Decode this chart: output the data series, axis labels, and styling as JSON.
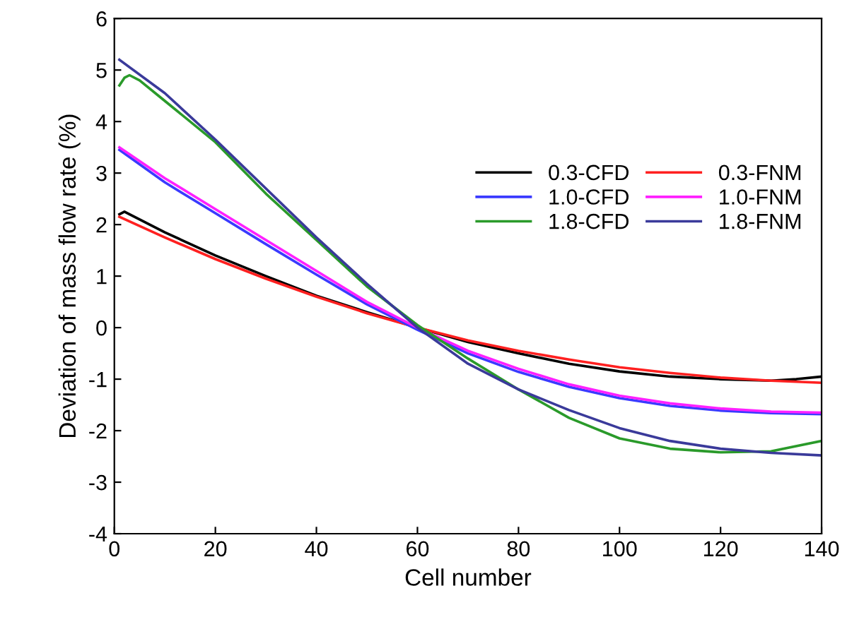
{
  "chart_data": {
    "type": "line",
    "xlabel": "Cell number",
    "ylabel": "Deviation of mass flow rate (%)",
    "xlim": [
      0,
      140
    ],
    "ylim": [
      -4,
      6
    ],
    "xticks": [
      0,
      20,
      40,
      60,
      80,
      100,
      120,
      140
    ],
    "yticks": [
      -4,
      -3,
      -2,
      -1,
      0,
      1,
      2,
      3,
      4,
      5,
      6
    ],
    "legend": "right",
    "grid": false,
    "marker": "none",
    "line_style": "solid",
    "series": [
      {
        "name": "0.3-CFD",
        "color": "#000000",
        "x": [
          1,
          2,
          10,
          20,
          30,
          40,
          50,
          60,
          70,
          80,
          90,
          100,
          110,
          120,
          130,
          135,
          140
        ],
        "values": [
          2.2,
          2.25,
          1.85,
          1.4,
          1.0,
          0.62,
          0.3,
          0.0,
          -0.28,
          -0.5,
          -0.7,
          -0.85,
          -0.95,
          -1.0,
          -1.03,
          -1.0,
          -0.95
        ]
      },
      {
        "name": "0.3-FNM",
        "color": "#ff2020",
        "x": [
          1,
          10,
          20,
          30,
          40,
          50,
          60,
          70,
          80,
          90,
          100,
          110,
          120,
          130,
          140
        ],
        "values": [
          2.15,
          1.75,
          1.33,
          0.95,
          0.6,
          0.28,
          0.0,
          -0.25,
          -0.45,
          -0.62,
          -0.77,
          -0.88,
          -0.97,
          -1.03,
          -1.07
        ]
      },
      {
        "name": "1.0-CFD",
        "color": "#3a3aff",
        "x": [
          1,
          10,
          20,
          30,
          40,
          50,
          60,
          70,
          80,
          90,
          100,
          110,
          120,
          130,
          140
        ],
        "values": [
          3.45,
          2.82,
          2.22,
          1.62,
          1.03,
          0.45,
          -0.04,
          -0.5,
          -0.86,
          -1.15,
          -1.37,
          -1.52,
          -1.61,
          -1.66,
          -1.68
        ]
      },
      {
        "name": "1.0-FNM",
        "color": "#ff20ff",
        "x": [
          1,
          10,
          20,
          30,
          40,
          50,
          60,
          70,
          80,
          90,
          100,
          110,
          120,
          130,
          140
        ],
        "values": [
          3.5,
          2.9,
          2.3,
          1.7,
          1.1,
          0.5,
          0.0,
          -0.45,
          -0.8,
          -1.1,
          -1.32,
          -1.47,
          -1.57,
          -1.63,
          -1.65
        ]
      },
      {
        "name": "1.8-CFD",
        "color": "#2a9a2a",
        "x": [
          1,
          2,
          3,
          5,
          10,
          20,
          30,
          40,
          50,
          60,
          70,
          80,
          90,
          100,
          110,
          120,
          130,
          140
        ],
        "values": [
          4.7,
          4.85,
          4.9,
          4.8,
          4.4,
          3.6,
          2.6,
          1.7,
          0.8,
          0.05,
          -0.6,
          -1.2,
          -1.75,
          -2.15,
          -2.35,
          -2.42,
          -2.4,
          -2.2
        ]
      },
      {
        "name": "1.8-FNM",
        "color": "#3a3a9a",
        "x": [
          1,
          10,
          20,
          30,
          40,
          50,
          60,
          70,
          80,
          90,
          100,
          110,
          120,
          130,
          140
        ],
        "values": [
          5.2,
          4.55,
          3.65,
          2.7,
          1.75,
          0.85,
          0.0,
          -0.7,
          -1.2,
          -1.6,
          -1.95,
          -2.2,
          -2.35,
          -2.43,
          -2.48
        ]
      }
    ]
  }
}
